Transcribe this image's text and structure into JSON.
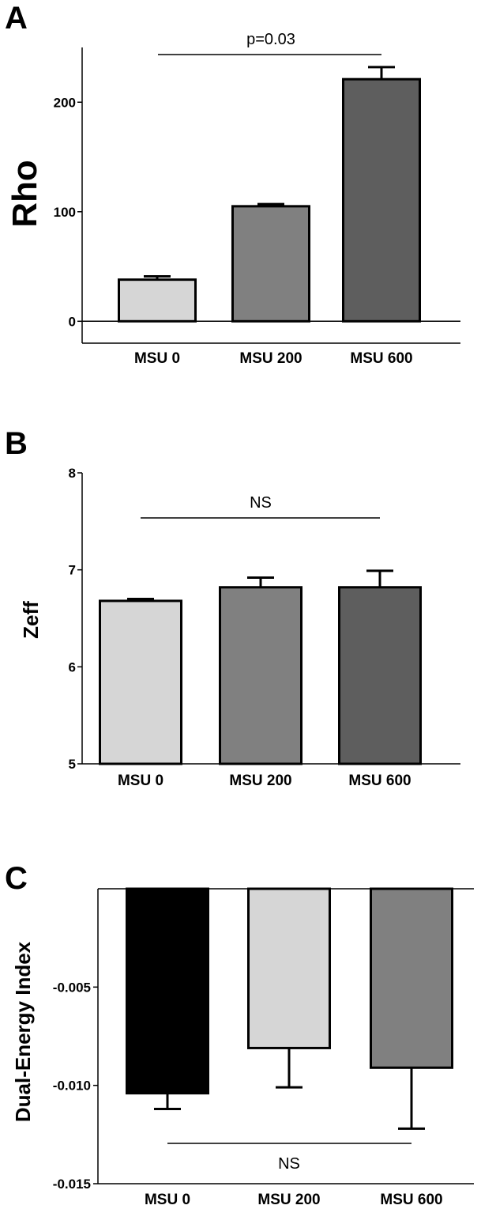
{
  "panels": [
    {
      "letter": "A"
    },
    {
      "letter": "B"
    },
    {
      "letter": "C"
    }
  ],
  "chart_data": [
    {
      "type": "bar",
      "panel": "A",
      "categories": [
        "MSU 0",
        "MSU 200",
        "MSU 600"
      ],
      "values": [
        38,
        105,
        221
      ],
      "error_upper": [
        41,
        107,
        232
      ],
      "ylabel": "Rho",
      "ylim": [
        -20,
        250
      ],
      "yticks": [
        "0",
        "100",
        "200"
      ],
      "bar_colors": [
        "#d6d6d6",
        "#808080",
        "#5e5e5e"
      ],
      "annotation": "p=0.03"
    },
    {
      "type": "bar",
      "panel": "B",
      "categories": [
        "MSU 0",
        "MSU 200",
        "MSU 600"
      ],
      "values": [
        6.68,
        6.82,
        6.82
      ],
      "error_upper": [
        6.7,
        6.92,
        6.99
      ],
      "ylabel": "Zeff",
      "ylim": [
        5,
        8
      ],
      "yticks": [
        "5",
        "6",
        "7",
        "8"
      ],
      "bar_colors": [
        "#d6d6d6",
        "#808080",
        "#5e5e5e"
      ],
      "annotation": "NS"
    },
    {
      "type": "bar",
      "panel": "C",
      "categories": [
        "MSU 0",
        "MSU 200",
        "MSU 600"
      ],
      "values": [
        -0.0104,
        -0.0081,
        -0.0091
      ],
      "error_lower": [
        -0.0112,
        -0.0101,
        -0.0122
      ],
      "ylabel": "Dual-Energy Index",
      "ylim": [
        -0.015,
        0
      ],
      "yticks": [
        "-0.005",
        "-0.010",
        "-0.015"
      ],
      "bar_colors": [
        "#000000",
        "#d6d6d6",
        "#808080"
      ],
      "annotation": "NS"
    }
  ]
}
